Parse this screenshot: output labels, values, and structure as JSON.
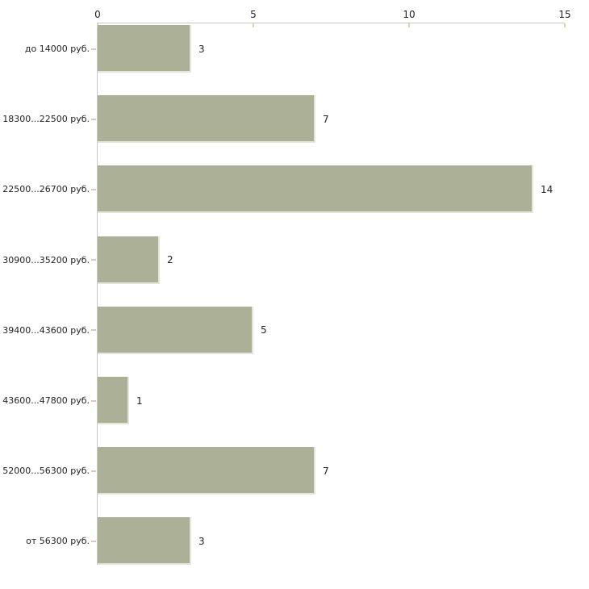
{
  "chart_data": {
    "type": "bar",
    "orientation": "horizontal",
    "title": "",
    "xlabel": "",
    "ylabel": "",
    "categories": [
      "до 14000 руб.",
      "18300...22500 руб.",
      "22500...26700 руб.",
      "30900...35200 руб.",
      "39400...43600 руб.",
      "43600...47800 руб.",
      "52000...56300 руб.",
      "от 56300 руб."
    ],
    "values": [
      3,
      7,
      14,
      2,
      5,
      1,
      7,
      3
    ],
    "value_labels": [
      "3",
      "7",
      "14",
      "2",
      "5",
      "1",
      "7",
      "3"
    ],
    "x_ticks": [
      "0",
      "5",
      "10",
      "15"
    ],
    "x_tick_values": [
      0,
      5,
      10,
      15
    ],
    "xlim": [
      0,
      15
    ],
    "axis_position": "top",
    "grid": false,
    "legend": "none",
    "colors": {
      "bar_fill": "#abb096",
      "bar_edge": "#e4e6da",
      "axis_line": "#c8c8c8",
      "numeric_tick": "#d6d9a8",
      "category_tick": "#ddc9ba",
      "text": "#222222",
      "background": "#ffffff"
    }
  }
}
